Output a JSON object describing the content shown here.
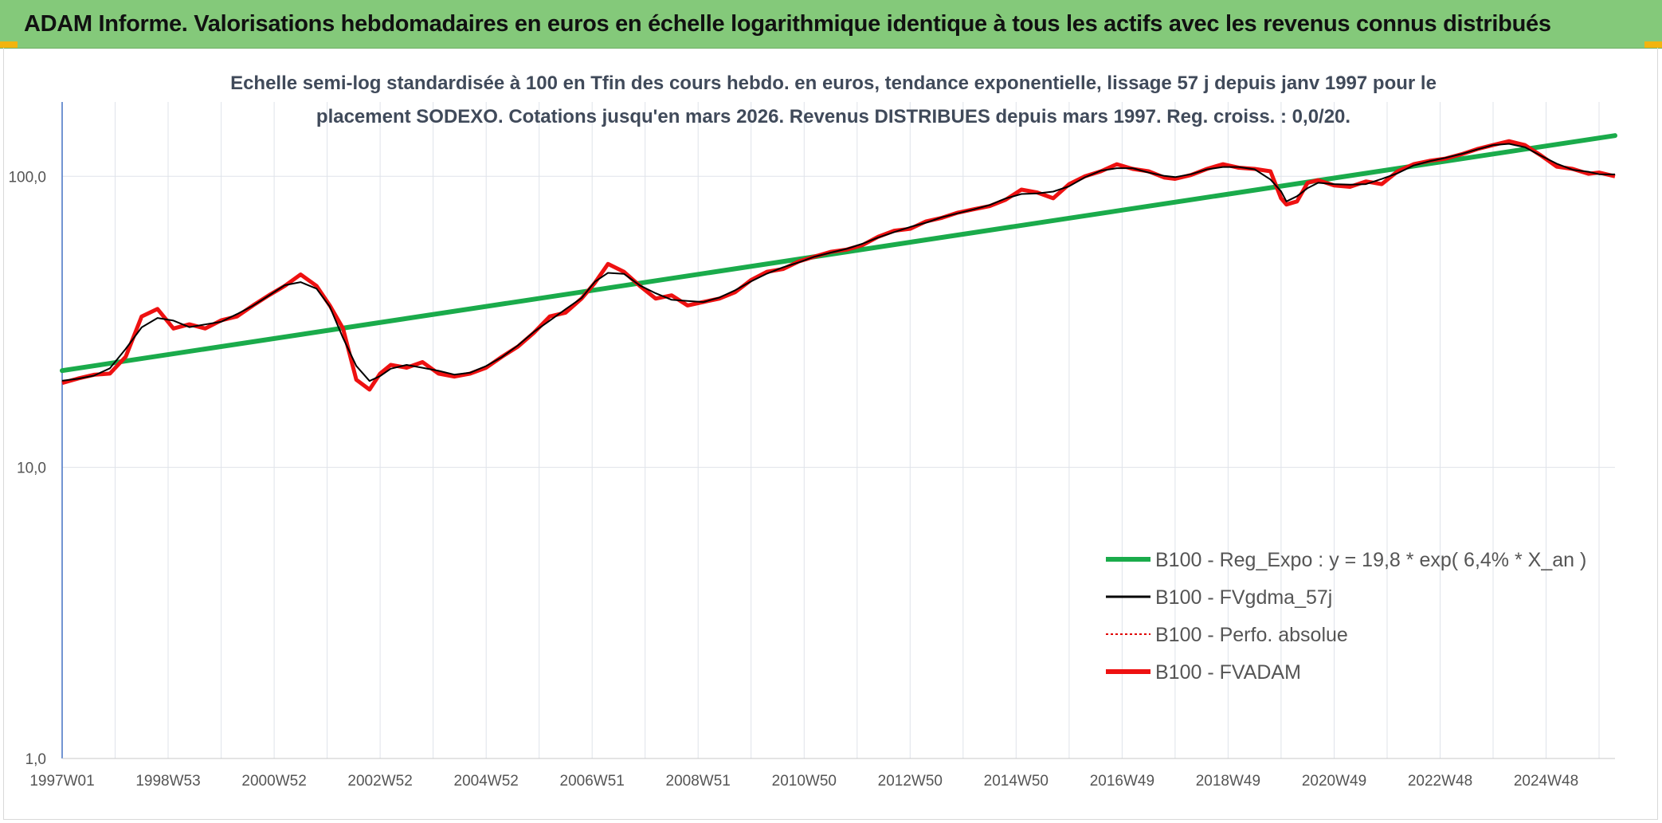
{
  "header": {
    "title": "ADAM Informe. Valorisations hebdomadaires en euros en échelle logarithmique identique à tous les actifs avec les revenus connus distribués"
  },
  "chart_data": {
    "type": "line",
    "title_lines": [
      "Echelle semi-log standardisée à 100 en Tfin des cours hebdo. en euros, tendance exponentielle, lissage 57 j depuis janv 1997 pour le",
      "placement SODEXO. Cotations jusqu'en mars 2026. Revenus DISTRIBUES depuis mars 1997. Reg. croiss. : 0,0/20."
    ],
    "y_scale": "log",
    "ylim": [
      1,
      180
    ],
    "y_ticks": [
      {
        "value": 1,
        "label": "1,0"
      },
      {
        "value": 10,
        "label": "10,0"
      },
      {
        "value": 100,
        "label": "100,0"
      }
    ],
    "xlim": [
      1997.0,
      2026.3
    ],
    "x_ticks": [
      {
        "value": 1997.0,
        "label": "1997W01"
      },
      {
        "value": 1999.0,
        "label": "1998W53"
      },
      {
        "value": 2001.0,
        "label": "2000W52"
      },
      {
        "value": 2003.0,
        "label": "2002W52"
      },
      {
        "value": 2005.0,
        "label": "2004W52"
      },
      {
        "value": 2007.0,
        "label": "2006W51"
      },
      {
        "value": 2009.0,
        "label": "2008W51"
      },
      {
        "value": 2011.0,
        "label": "2010W50"
      },
      {
        "value": 2013.0,
        "label": "2012W50"
      },
      {
        "value": 2015.0,
        "label": "2014W50"
      },
      {
        "value": 2017.0,
        "label": "2016W49"
      },
      {
        "value": 2019.0,
        "label": "2018W49"
      },
      {
        "value": 2021.0,
        "label": "2020W49"
      },
      {
        "value": 2023.0,
        "label": "2022W48"
      },
      {
        "value": 2025.0,
        "label": "2024W48"
      }
    ],
    "grid": true,
    "legend_position": "bottom-right",
    "legend": [
      {
        "label": "B100 - Reg_Expo : y = 19,8 * exp( 6,4% *  X_an )",
        "color": "#1aab4b",
        "style": "thick"
      },
      {
        "label": "B100 - FVgdma_57j",
        "color": "#000000",
        "style": "solid"
      },
      {
        "label": "B100 - Perfo. absolue",
        "color": "#e00000",
        "style": "dotted"
      },
      {
        "label": "B100 - FVADAM",
        "color": "#ee1111",
        "style": "thick"
      }
    ],
    "series": [
      {
        "name": "B100 - Reg_Expo : y = 19,8 * exp( 6,4% *  X_an )",
        "color": "#1aab4b",
        "x": [
          1997.0,
          2026.3
        ],
        "values": [
          21.5,
          138
        ]
      },
      {
        "name": "B100 - FVADAM",
        "color": "#ee1111",
        "x": [
          1997.0,
          1997.3,
          1997.6,
          1997.9,
          1998.2,
          1998.5,
          1998.8,
          1999.1,
          1999.4,
          1999.7,
          2000.0,
          2000.3,
          2000.6,
          2000.9,
          2001.2,
          2001.5,
          2001.8,
          2002.05,
          2002.3,
          2002.55,
          2002.8,
          2003.0,
          2003.2,
          2003.5,
          2003.8,
          2004.1,
          2004.4,
          2004.7,
          2005.0,
          2005.3,
          2005.6,
          2005.9,
          2006.2,
          2006.5,
          2006.8,
          2007.05,
          2007.3,
          2007.6,
          2007.9,
          2008.2,
          2008.5,
          2008.8,
          2009.1,
          2009.4,
          2009.7,
          2010.0,
          2010.3,
          2010.6,
          2010.9,
          2011.2,
          2011.5,
          2011.8,
          2012.1,
          2012.4,
          2012.7,
          2013.0,
          2013.3,
          2013.6,
          2013.9,
          2014.2,
          2014.5,
          2014.8,
          2015.1,
          2015.4,
          2015.7,
          2016.0,
          2016.3,
          2016.6,
          2016.9,
          2017.2,
          2017.5,
          2017.8,
          2018.0,
          2018.3,
          2018.6,
          2018.9,
          2019.2,
          2019.5,
          2019.8,
          2020.0,
          2020.1,
          2020.3,
          2020.5,
          2020.7,
          2021.0,
          2021.3,
          2021.6,
          2021.9,
          2022.2,
          2022.5,
          2022.8,
          2023.1,
          2023.4,
          2023.7,
          2024.0,
          2024.3,
          2024.6,
          2024.9,
          2025.2,
          2025.5,
          2025.8,
          2026.0,
          2026.3
        ],
        "values": [
          19.5,
          20.2,
          20.8,
          21.0,
          24,
          33,
          35,
          30,
          31,
          30,
          32,
          33,
          36,
          39,
          42,
          46,
          42,
          36,
          30,
          20,
          18.5,
          21,
          22.5,
          22,
          23,
          21,
          20.5,
          21,
          22,
          24,
          26,
          29,
          33,
          34,
          38,
          43,
          50,
          47,
          42,
          38,
          39,
          36,
          37,
          38,
          40,
          44,
          47,
          48,
          51,
          53,
          55,
          56,
          58,
          62,
          65,
          66,
          70,
          72,
          75,
          77,
          79,
          83,
          90,
          88,
          84,
          94,
          100,
          104,
          110,
          106,
          104,
          99,
          98,
          101,
          106,
          110,
          107,
          106,
          104,
          84,
          80,
          82,
          95,
          97,
          93,
          92,
          96,
          94,
          104,
          110,
          113,
          115,
          119,
          124,
          128,
          132,
          128,
          118,
          108,
          106,
          102,
          103,
          100
        ]
      }
    ]
  }
}
